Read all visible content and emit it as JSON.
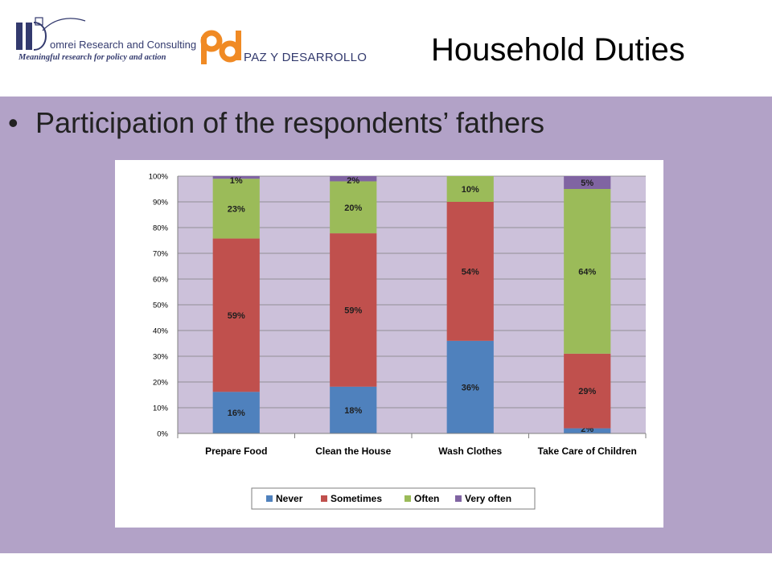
{
  "header": {
    "title": "Household Duties",
    "logo_domrei": {
      "name": "omrei Research and Consulting",
      "tagline": "Meaningful research for policy and action"
    },
    "logo_pd": {
      "text": "PAZ Y DESARROLLO"
    }
  },
  "content": {
    "bullet": "Participation of the respondents’ fathers"
  },
  "colors": {
    "content_bg": "#b2a2c7",
    "plot_bg": "#ccc1da",
    "never": "#4f81bd",
    "sometimes": "#c0504d",
    "often": "#9bbb59",
    "very_often": "#8064a2",
    "title_text": "#000000",
    "logo_navy": "#333a6e",
    "logo_orange": "#f08a24"
  },
  "chart_data": {
    "type": "bar",
    "stacked": "percent",
    "title": "",
    "xlabel": "",
    "ylabel": "",
    "ylim": [
      0,
      100
    ],
    "y_ticks": [
      "0%",
      "10%",
      "20%",
      "30%",
      "40%",
      "50%",
      "60%",
      "70%",
      "80%",
      "90%",
      "100%"
    ],
    "grid": true,
    "legend_position": "bottom",
    "categories": [
      "Prepare Food",
      "Clean the House",
      "Wash Clothes",
      "Take Care of Children"
    ],
    "series": [
      {
        "name": "Never",
        "values": [
          16,
          18,
          36,
          2
        ],
        "labels": [
          "16%",
          "18%",
          "36%",
          "2%"
        ]
      },
      {
        "name": "Sometimes",
        "values": [
          59,
          59,
          54,
          29
        ],
        "labels": [
          "59%",
          "59%",
          "54%",
          "29%"
        ]
      },
      {
        "name": "Often",
        "values": [
          23,
          20,
          10,
          64
        ],
        "labels": [
          "23%",
          "20%",
          "10%",
          "64%"
        ]
      },
      {
        "name": "Very often",
        "values": [
          1,
          2,
          0,
          5
        ],
        "labels": [
          "1%",
          "2%",
          "",
          "5%"
        ]
      }
    ]
  }
}
